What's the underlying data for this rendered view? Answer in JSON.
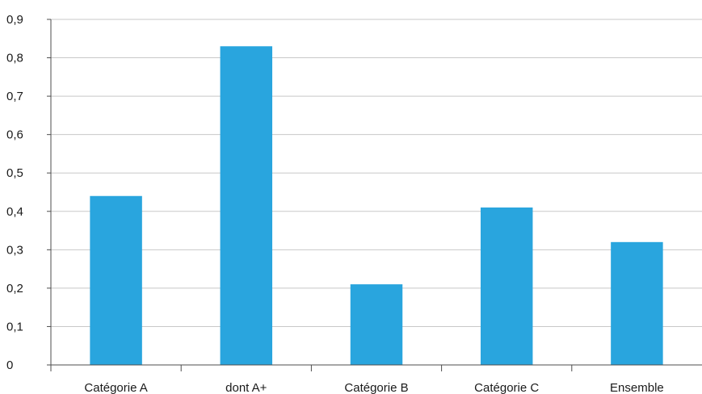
{
  "chart_data": {
    "type": "bar",
    "categories": [
      "Catégorie A",
      "dont A+",
      "Catégorie B",
      "Catégorie C",
      "Ensemble"
    ],
    "values": [
      0.44,
      0.83,
      0.21,
      0.41,
      0.32
    ],
    "ylim": [
      0,
      0.9
    ],
    "yticks": [
      "0",
      "0,1",
      "0,2",
      "0,3",
      "0,4",
      "0,5",
      "0,6",
      "0,7",
      "0,8",
      "0,9"
    ],
    "grid": true,
    "bar_color": "#29a5de",
    "grid_color": "#c8c8c8",
    "axis_color": "#4d4d4d"
  }
}
